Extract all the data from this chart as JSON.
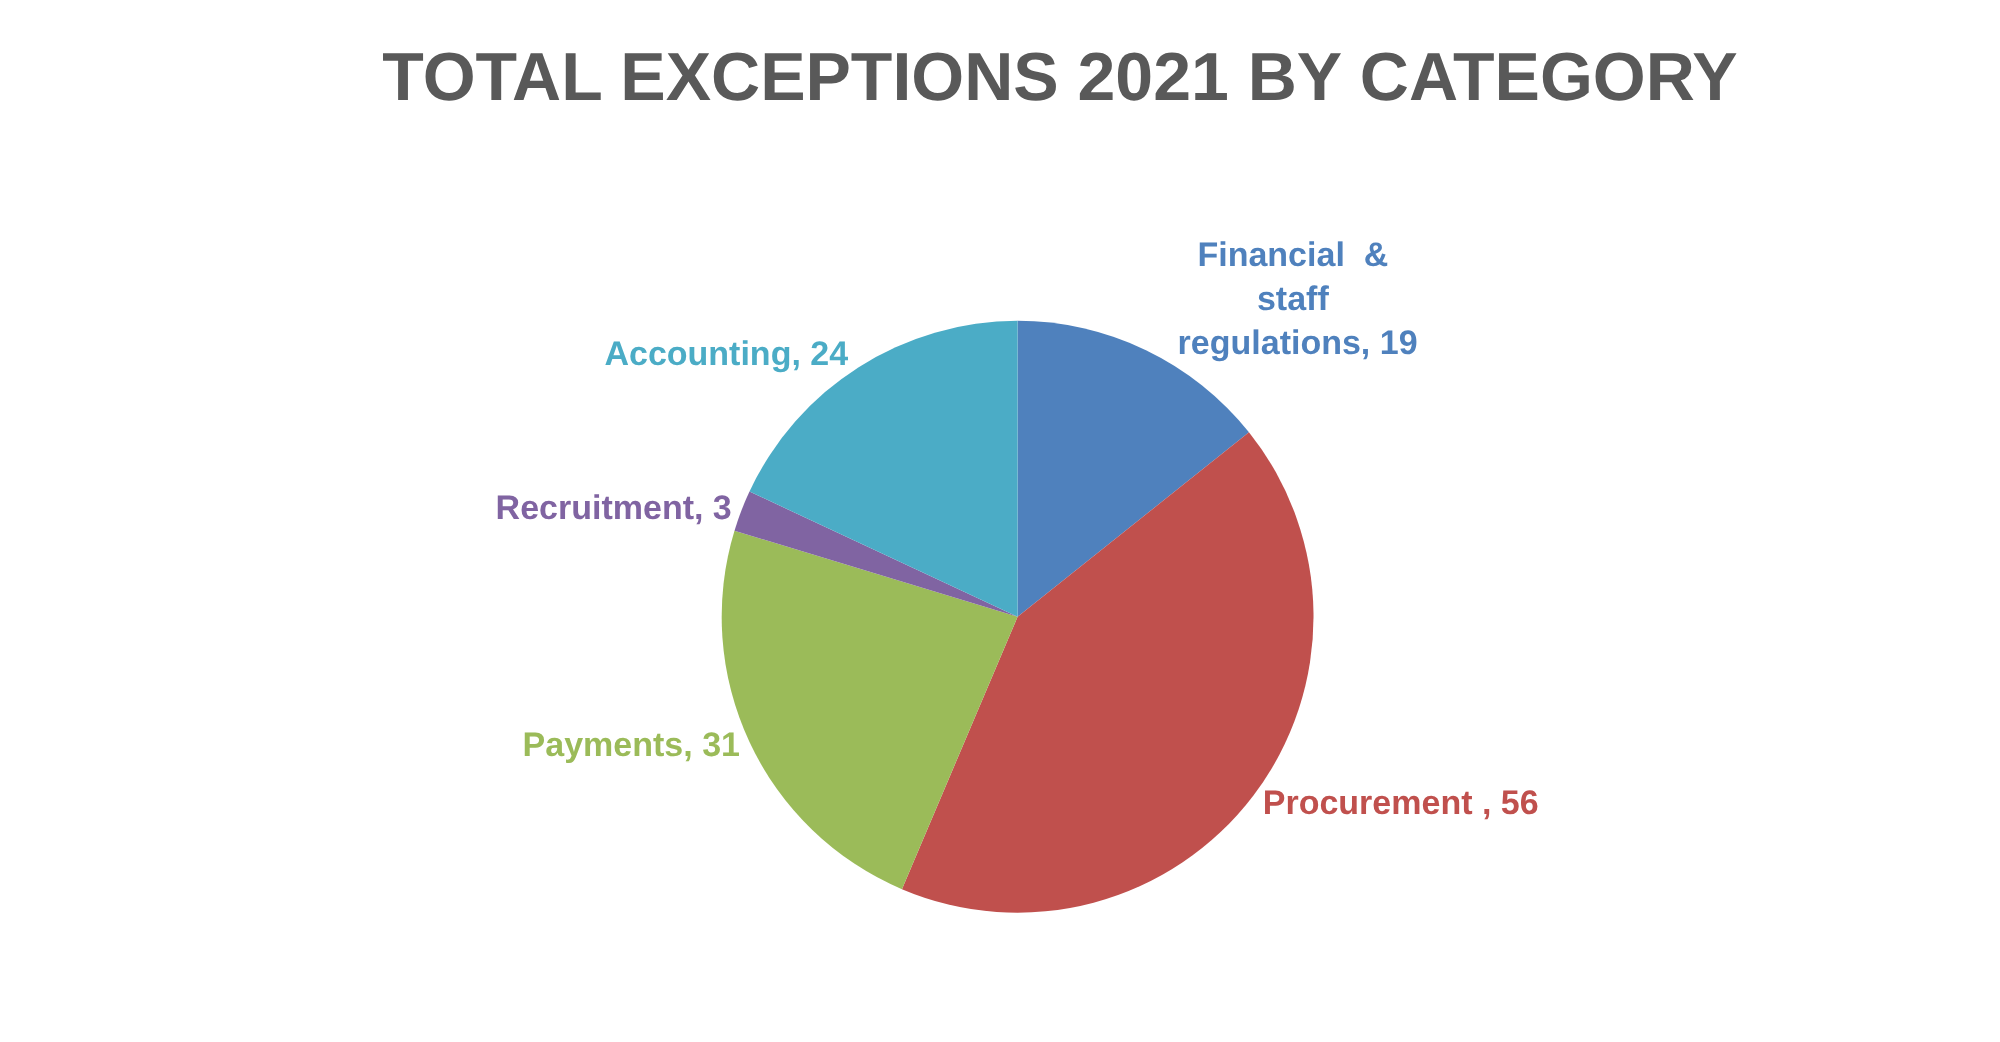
{
  "chart_data": {
    "type": "pie",
    "title": "TOTAL EXCEPTIONS 2021 BY CATEGORY",
    "categories": [
      null,
      null,
      null,
      null,
      null
    ],
    "values": [
      19,
      56,
      31,
      3,
      24
    ],
    "value_labels": [
      "Financial  & staff regulations, 19",
      "Procurement , 56",
      "Payments, 31",
      "Recruitment, 3",
      "Accounting, 24"
    ],
    "colors": [
      "#4f81bd",
      "#c0504d",
      "#9bbb59",
      "#8064a2",
      "#4bacc6"
    ],
    "legend": false
  }
}
